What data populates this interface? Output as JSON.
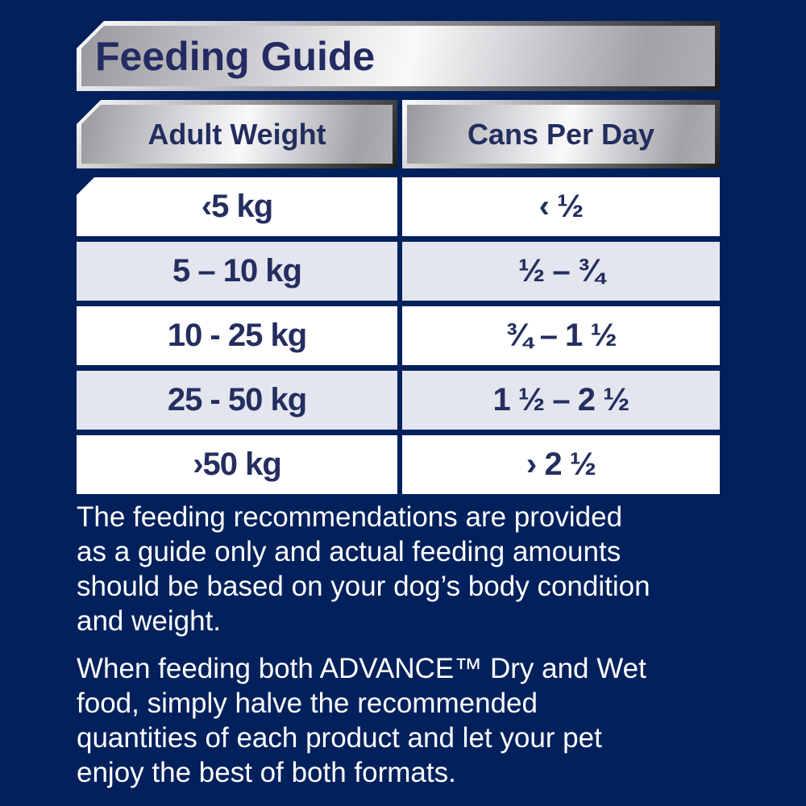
{
  "title": "Feeding Guide",
  "table": {
    "headers": [
      "Adult Weight",
      "Cans Per Day"
    ],
    "rows": [
      {
        "weight": "‹5 kg",
        "cans": "‹ ½"
      },
      {
        "weight": "5 – 10 kg",
        "cans": "½ – ¾"
      },
      {
        "weight": "10 - 25 kg",
        "cans": "¾ – 1 ½"
      },
      {
        "weight": "25 - 50 kg",
        "cans": "1 ½ – 2 ½"
      },
      {
        "weight": "›50 kg",
        "cans": "› 2 ½"
      }
    ]
  },
  "paragraphs": [
    {
      "lines": [
        "The feeding recommendations are provided",
        "as a guide only and actual feeding amounts",
        "should be based on your dog’s body condition",
        "and weight."
      ]
    },
    {
      "lines": [
        "When feeding both ADVANCE™ Dry and Wet",
        "food, simply halve the recommended",
        "quantities of each product and let your pet",
        "enjoy the best of both formats."
      ]
    }
  ],
  "colors": {
    "background_navy": "#02215c",
    "text_navy": "#242e5f",
    "row_white": "#ffffff",
    "row_lavender": "#e3e5ef",
    "paragraph_text": "#ffffff",
    "silver_highlight": "#f9f9fa",
    "silver_mid": "#b0b0b4",
    "frame_dark": "#1c1c1e"
  }
}
